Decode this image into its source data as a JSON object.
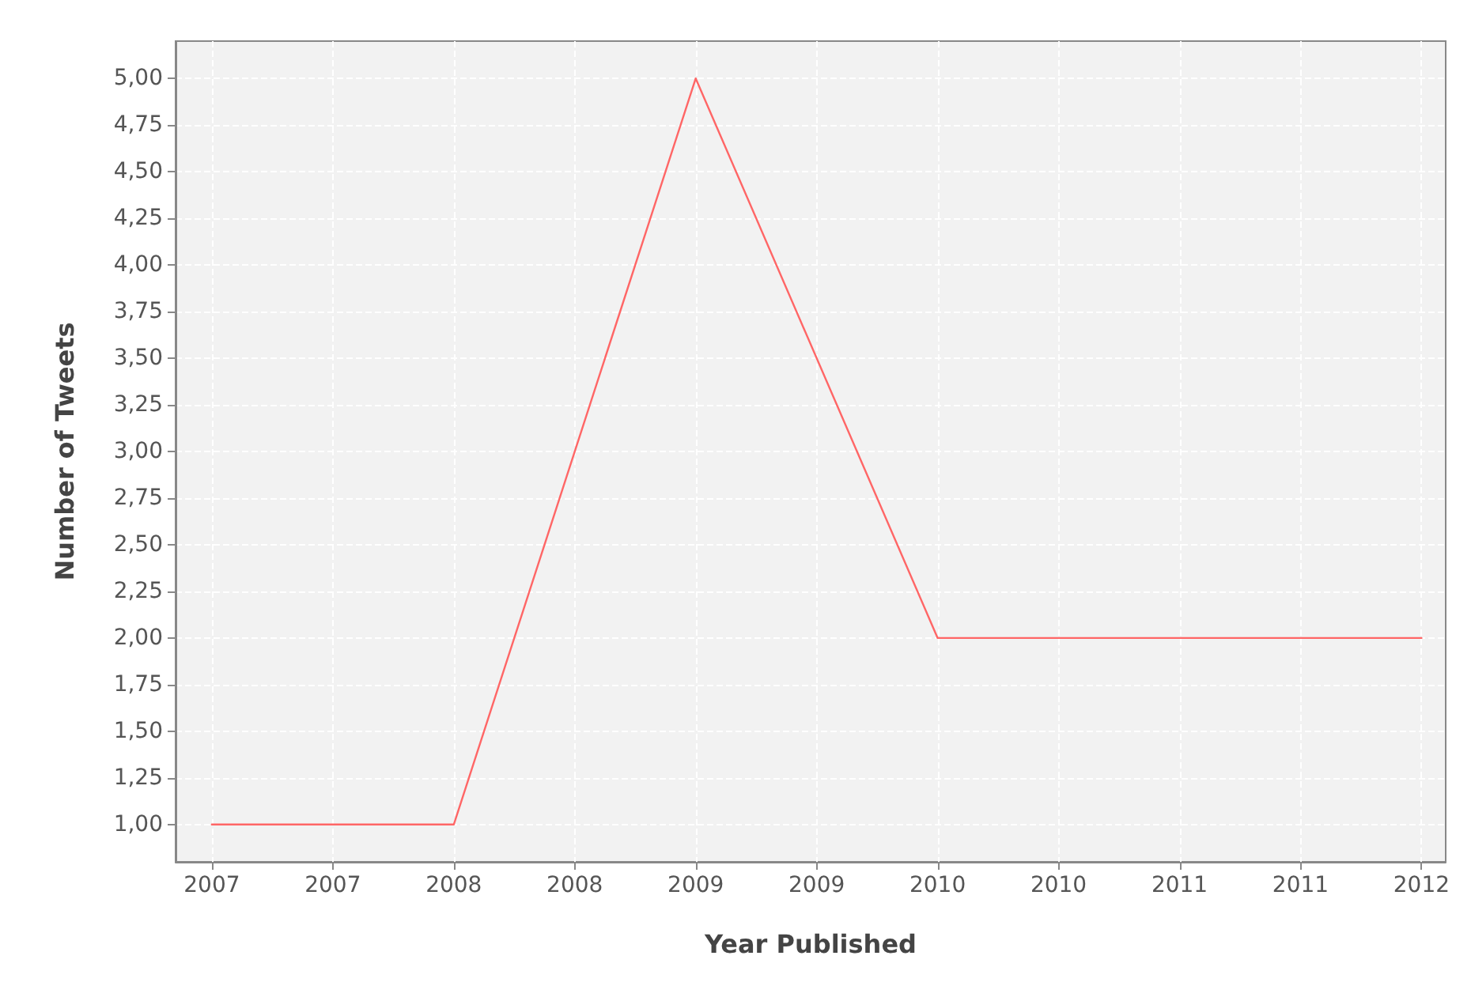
{
  "chart_data": {
    "type": "line",
    "xlabel": "Year Published",
    "ylabel": "Number of Tweets",
    "x": [
      2007,
      2008,
      2009,
      2010,
      2011,
      2012
    ],
    "series": [
      {
        "color": "#ff6666",
        "values": [
          1,
          1,
          5,
          2,
          2,
          2
        ]
      }
    ],
    "xlim": [
      2006.85,
      2012.1
    ],
    "xticks": [
      2007,
      {
        "value": 2007.5,
        "label": "2007"
      },
      2008,
      {
        "value": 2008.5,
        "label": "2008"
      },
      2009,
      {
        "value": 2009.5,
        "label": "2009"
      },
      2010,
      {
        "value": 2010.5,
        "label": "2010"
      },
      2011,
      {
        "value": 2011.5,
        "label": "2011"
      },
      2012
    ],
    "ylim": [
      0.8,
      5.2
    ],
    "yticks": [
      {
        "value": 1,
        "label": "1,00"
      },
      {
        "value": 1.25,
        "label": "1,25"
      },
      {
        "value": 1.5,
        "label": "1,50"
      },
      {
        "value": 1.75,
        "label": "1,75"
      },
      {
        "value": 2,
        "label": "2,00"
      },
      {
        "value": 2.25,
        "label": "2,25"
      },
      {
        "value": 2.5,
        "label": "2,50"
      },
      {
        "value": 2.75,
        "label": "2,75"
      },
      {
        "value": 3,
        "label": "3,00"
      },
      {
        "value": 3.25,
        "label": "3,25"
      },
      {
        "value": 3.5,
        "label": "3,50"
      },
      {
        "value": 3.75,
        "label": "3,75"
      },
      {
        "value": 4,
        "label": "4,00"
      },
      {
        "value": 4.25,
        "label": "4,25"
      },
      {
        "value": 4.5,
        "label": "4,50"
      },
      {
        "value": 4.75,
        "label": "4,75"
      },
      {
        "value": 5,
        "label": "5,00"
      }
    ],
    "grid": true,
    "marker": "none",
    "line_style": "solid"
  }
}
